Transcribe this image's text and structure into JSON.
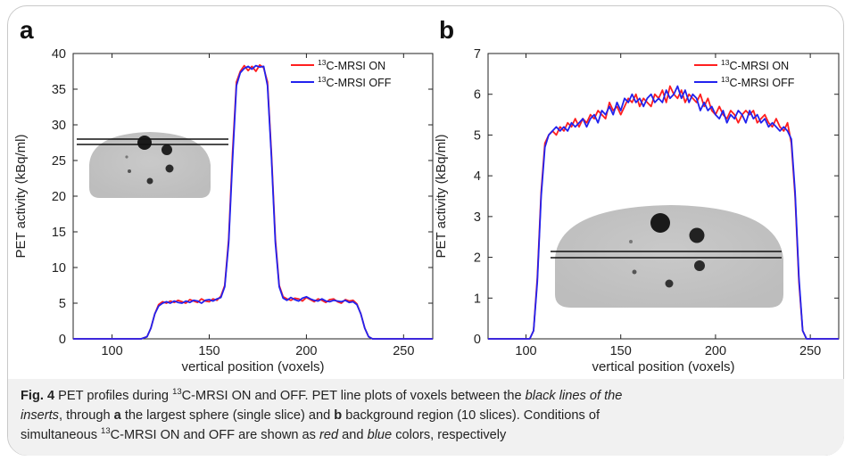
{
  "figure": {
    "panels": [
      "a",
      "b"
    ]
  },
  "caption": {
    "fig_label": "Fig. 4",
    "title_pre": " PET profiles during ",
    "title_sup": "13",
    "title_post": "C-MRSI ON and OFF. PET line plots of voxels between the ",
    "italic_1": "black lines of the",
    "line2_italic": "inserts",
    "line2_a": ", through ",
    "bold_a": "a",
    "line2_b": " the largest sphere (single slice) and ",
    "bold_b": "b",
    "line2_c": " background region (10 slices). Conditions of",
    "line3_a": "simultaneous ",
    "line3_sup": "13",
    "line3_b": "C-MRSI ON and OFF are shown as ",
    "italic_red": "red",
    "line3_c": " and ",
    "italic_blue": "blue",
    "line3_d": " colors, respectively"
  },
  "colors": {
    "on": "#ff1f1f",
    "off": "#2222ee"
  },
  "chart_data": [
    {
      "panel": "a",
      "type": "line",
      "xlabel": "vertical position (voxels)",
      "ylabel": "PET activity (kBq/ml)",
      "xlim": [
        80,
        265
      ],
      "ylim": [
        0,
        40
      ],
      "xticks": [
        100,
        150,
        200,
        250
      ],
      "yticks": [
        0,
        5,
        10,
        15,
        20,
        25,
        30,
        35,
        40
      ],
      "legend_position": "top-right",
      "series": [
        {
          "name": "13C-MRSI ON",
          "legend_sup": "13",
          "legend_text": "C-MRSI ON",
          "color": "#ff1f1f",
          "x": [
            80,
            115,
            118,
            120,
            122,
            124,
            126,
            128,
            130,
            132,
            134,
            136,
            138,
            140,
            142,
            144,
            146,
            148,
            150,
            152,
            154,
            156,
            158,
            160,
            162,
            164,
            166,
            168,
            170,
            172,
            174,
            176,
            178,
            180,
            182,
            184,
            186,
            188,
            190,
            192,
            194,
            196,
            198,
            200,
            202,
            204,
            206,
            208,
            210,
            212,
            214,
            216,
            218,
            220,
            222,
            224,
            226,
            228,
            230,
            232,
            234,
            265
          ],
          "values": [
            0,
            0,
            0.3,
            1.5,
            3.5,
            4.8,
            5.2,
            5.0,
            5.3,
            5.1,
            5.4,
            5.2,
            5.0,
            5.5,
            5.3,
            5.1,
            5.6,
            5.3,
            5.2,
            5.6,
            5.4,
            6.0,
            7.5,
            14,
            26,
            36,
            37.5,
            38.3,
            37.6,
            38.2,
            37.5,
            38.4,
            38.0,
            36,
            26,
            14,
            7.5,
            5.9,
            5.6,
            5.4,
            5.7,
            5.6,
            5.3,
            5.8,
            5.5,
            5.2,
            5.6,
            5.4,
            5.1,
            5.5,
            5.6,
            5.2,
            5.0,
            5.5,
            5.3,
            5.4,
            4.9,
            3.5,
            1.5,
            0.3,
            0,
            0
          ]
        },
        {
          "name": "13C-MRSI OFF",
          "legend_sup": "13",
          "legend_text": "C-MRSI OFF",
          "color": "#2222ee",
          "x": [
            80,
            115,
            118,
            120,
            122,
            124,
            126,
            128,
            130,
            132,
            134,
            136,
            138,
            140,
            142,
            144,
            146,
            148,
            150,
            152,
            154,
            156,
            158,
            160,
            162,
            164,
            166,
            168,
            170,
            172,
            174,
            176,
            178,
            180,
            182,
            184,
            186,
            188,
            190,
            192,
            194,
            196,
            198,
            200,
            202,
            204,
            206,
            208,
            210,
            212,
            214,
            216,
            218,
            220,
            222,
            224,
            226,
            228,
            230,
            232,
            234,
            265
          ],
          "values": [
            0,
            0,
            0.3,
            1.5,
            3.5,
            4.6,
            5.0,
            5.2,
            5.0,
            5.3,
            5.1,
            5.0,
            5.3,
            5.1,
            5.4,
            5.3,
            5.0,
            5.4,
            5.5,
            5.3,
            5.6,
            5.8,
            7.3,
            13.5,
            25,
            35.5,
            37.3,
            37.9,
            38.2,
            37.8,
            38.3,
            38.1,
            38.2,
            35.5,
            25.5,
            13.5,
            7.3,
            5.7,
            5.4,
            5.8,
            5.5,
            5.3,
            5.7,
            5.9,
            5.6,
            5.4,
            5.3,
            5.6,
            5.3,
            5.2,
            5.4,
            5.3,
            5.2,
            5.4,
            5.1,
            5.2,
            4.8,
            3.5,
            1.5,
            0.3,
            0,
            0
          ]
        }
      ]
    },
    {
      "panel": "b",
      "type": "line",
      "xlabel": "vertical position (voxels)",
      "ylabel": "PET activity (kBq/ml)",
      "xlim": [
        80,
        265
      ],
      "ylim": [
        0,
        7
      ],
      "xticks": [
        100,
        150,
        200,
        250
      ],
      "yticks": [
        0,
        1,
        2,
        3,
        4,
        5,
        6,
        7
      ],
      "legend_position": "top-right",
      "series": [
        {
          "name": "13C-MRSI ON",
          "legend_sup": "13",
          "legend_text": "C-MRSI ON",
          "color": "#ff1f1f",
          "x": [
            80,
            102,
            104,
            106,
            108,
            110,
            112,
            114,
            116,
            118,
            120,
            122,
            124,
            126,
            128,
            130,
            132,
            134,
            136,
            138,
            140,
            142,
            144,
            146,
            148,
            150,
            152,
            154,
            156,
            158,
            160,
            162,
            164,
            166,
            168,
            170,
            172,
            174,
            176,
            178,
            180,
            182,
            184,
            186,
            188,
            190,
            192,
            194,
            196,
            198,
            200,
            202,
            204,
            206,
            208,
            210,
            212,
            214,
            216,
            218,
            220,
            222,
            224,
            226,
            228,
            230,
            232,
            234,
            236,
            238,
            240,
            242,
            244,
            246,
            248,
            265
          ],
          "values": [
            0,
            0,
            0.2,
            1.5,
            3.6,
            4.8,
            5.0,
            5.1,
            5.0,
            5.2,
            5.1,
            5.3,
            5.2,
            5.4,
            5.2,
            5.4,
            5.3,
            5.5,
            5.4,
            5.6,
            5.5,
            5.4,
            5.8,
            5.6,
            5.7,
            5.5,
            5.7,
            5.9,
            5.8,
            6.0,
            5.7,
            5.9,
            5.8,
            5.7,
            6.0,
            5.9,
            6.1,
            5.8,
            6.2,
            6.0,
            5.9,
            6.1,
            5.8,
            6.0,
            5.9,
            5.8,
            6.0,
            5.7,
            5.9,
            5.6,
            5.5,
            5.7,
            5.5,
            5.4,
            5.6,
            5.5,
            5.3,
            5.5,
            5.6,
            5.5,
            5.6,
            5.3,
            5.4,
            5.5,
            5.3,
            5.2,
            5.4,
            5.2,
            5.1,
            5.3,
            4.8,
            3.5,
            1.4,
            0.2,
            0,
            0
          ]
        },
        {
          "name": "13C-MRSI OFF",
          "legend_sup": "13",
          "legend_text": "C-MRSI OFF",
          "color": "#2222ee",
          "x": [
            80,
            102,
            104,
            106,
            108,
            110,
            112,
            114,
            116,
            118,
            120,
            122,
            124,
            126,
            128,
            130,
            132,
            134,
            136,
            138,
            140,
            142,
            144,
            146,
            148,
            150,
            152,
            154,
            156,
            158,
            160,
            162,
            164,
            166,
            168,
            170,
            172,
            174,
            176,
            178,
            180,
            182,
            184,
            186,
            188,
            190,
            192,
            194,
            196,
            198,
            200,
            202,
            204,
            206,
            208,
            210,
            212,
            214,
            216,
            218,
            220,
            222,
            224,
            226,
            228,
            230,
            232,
            234,
            236,
            238,
            240,
            242,
            244,
            246,
            248,
            265
          ],
          "values": [
            0,
            0,
            0.2,
            1.4,
            3.5,
            4.7,
            5.0,
            5.1,
            5.2,
            5.1,
            5.2,
            5.1,
            5.3,
            5.2,
            5.3,
            5.4,
            5.2,
            5.4,
            5.5,
            5.3,
            5.6,
            5.5,
            5.7,
            5.5,
            5.8,
            5.6,
            5.9,
            5.8,
            6.0,
            5.8,
            5.9,
            5.7,
            5.9,
            6.0,
            5.8,
            5.9,
            5.8,
            6.1,
            5.9,
            6.0,
            6.2,
            5.9,
            6.1,
            5.8,
            6.0,
            5.9,
            5.6,
            5.8,
            5.6,
            5.7,
            5.5,
            5.4,
            5.6,
            5.3,
            5.5,
            5.4,
            5.6,
            5.5,
            5.3,
            5.6,
            5.4,
            5.5,
            5.3,
            5.4,
            5.2,
            5.3,
            5.2,
            5.1,
            5.2,
            5.1,
            4.9,
            3.6,
            1.5,
            0.2,
            0,
            0
          ]
        }
      ]
    }
  ]
}
